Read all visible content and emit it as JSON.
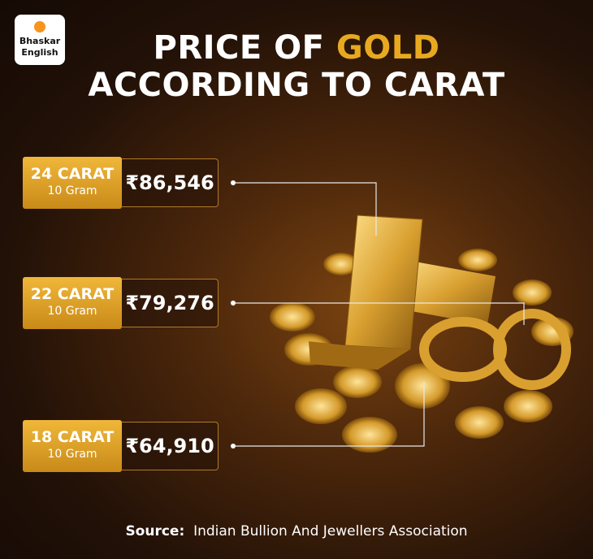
{
  "logo": {
    "line1": "Bhaskar",
    "line2": "English"
  },
  "header": {
    "title_part1": "PRICE OF ",
    "title_highlight": "GOLD",
    "title_line2": "ACCORDING TO CARAT"
  },
  "items": [
    {
      "carat": "24 CARAT",
      "unit": "10 Gram",
      "price": "₹86,546"
    },
    {
      "carat": "22 CARAT",
      "unit": "10 Gram",
      "price": "₹79,276"
    },
    {
      "carat": "18 CARAT",
      "unit": "10 Gram",
      "price": "₹64,910"
    }
  ],
  "footer": {
    "source_label": "Source:",
    "source_text": "Indian Bullion And Jewellers Association"
  }
}
